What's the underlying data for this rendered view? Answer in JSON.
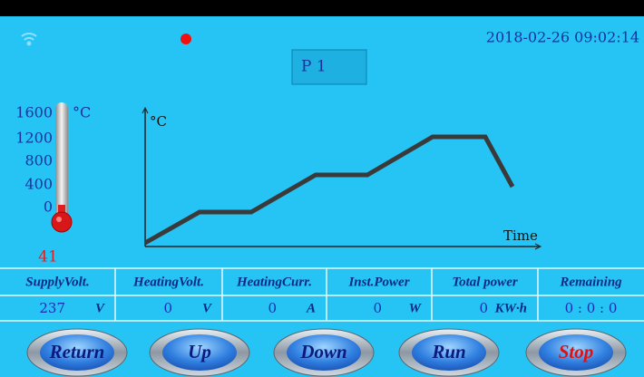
{
  "status": {
    "datetime": "2018-02-26 09:02:14"
  },
  "program": "P 1",
  "thermometer": {
    "unit": "°C",
    "scale": [
      "1600",
      "1200",
      "800",
      "400",
      "0"
    ],
    "reading": "41"
  },
  "graph": {
    "y_label": "°C",
    "x_label": "Time"
  },
  "table": {
    "headers": [
      "SupplyVolt.",
      "HeatingVolt.",
      "HeatingCurr.",
      "Inst.Power",
      "Total power",
      "Remaining"
    ],
    "values": [
      {
        "value": "237",
        "unit": "V"
      },
      {
        "value": "0",
        "unit": "V"
      },
      {
        "value": "0",
        "unit": "A"
      },
      {
        "value": "0",
        "unit": "W"
      },
      {
        "value": "0",
        "unit": "KW·h"
      },
      {
        "value": "0 : 0 : 0"
      }
    ]
  },
  "buttons": [
    "Return",
    "Up",
    "Down",
    "Run",
    "Stop"
  ]
}
